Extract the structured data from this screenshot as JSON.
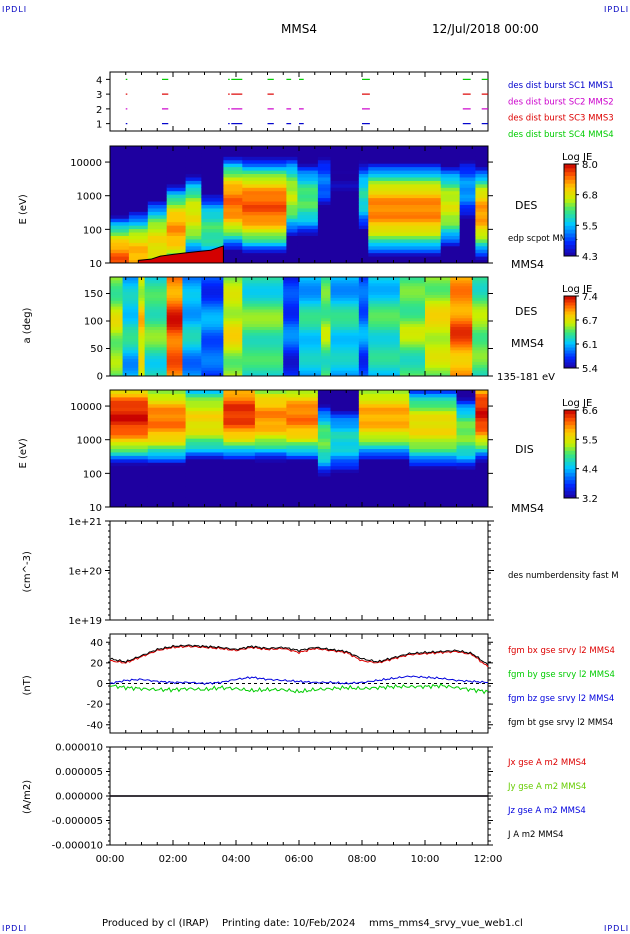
{
  "corners": {
    "tl": "IPDLI",
    "tr": "IPDLI",
    "bl": "IPDLI",
    "br": "IPDLI"
  },
  "header": {
    "spacecraft": "MMS4",
    "date": "12/Jul/2018 00:00"
  },
  "footer": {
    "produced": "Produced by cl (IRAP)",
    "printing": "Printing date: 10/Feb/2024",
    "file": "mms_mms4_srvy_vue_web1.cl"
  },
  "colors": {
    "mms1": "#0000cc",
    "mms2": "#cc00cc",
    "mms3": "#dd0000",
    "mms4": "#00cc00",
    "bx": "#dd0000",
    "by": "#00cc00",
    "bz": "#0000dd",
    "bt": "#000000",
    "jx": "#dd0000",
    "jy": "#66cc00",
    "jz": "#0000dd",
    "j": "#000000"
  },
  "chart_data": [
    {
      "id": "burst",
      "type": "scatter",
      "x_range": [
        0,
        12
      ],
      "ylim": [
        0.5,
        4.5
      ],
      "y_ticks": [
        "1",
        "2",
        "3",
        "4"
      ],
      "series": [
        {
          "name": "des dist burst SC1 MMS1",
          "y": 1,
          "color": "mms1",
          "intervals": [
            [
              0.5,
              0.55
            ],
            [
              1.65,
              1.85
            ],
            [
              3.75,
              3.8
            ],
            [
              3.85,
              4.2
            ],
            [
              5.0,
              5.2
            ],
            [
              5.6,
              5.75
            ],
            [
              6.0,
              6.15
            ],
            [
              8.0,
              8.25
            ],
            [
              11.2,
              11.45
            ],
            [
              11.8,
              12.0
            ]
          ]
        },
        {
          "name": "des dist burst SC2 MMS2",
          "y": 2,
          "color": "mms2",
          "intervals": [
            [
              0.5,
              0.55
            ],
            [
              1.65,
              1.85
            ],
            [
              3.75,
              3.8
            ],
            [
              3.85,
              4.2
            ],
            [
              5.0,
              5.2
            ],
            [
              5.6,
              5.75
            ],
            [
              6.0,
              6.15
            ],
            [
              8.0,
              8.25
            ],
            [
              11.2,
              11.45
            ],
            [
              11.8,
              12.0
            ]
          ]
        },
        {
          "name": "des dist burst SC3 MMS3",
          "y": 3,
          "color": "mms3",
          "intervals": [
            [
              0.5,
              0.55
            ],
            [
              1.65,
              1.85
            ],
            [
              3.75,
              3.8
            ],
            [
              3.85,
              4.2
            ],
            [
              5.0,
              5.2
            ],
            [
              8.0,
              8.25
            ],
            [
              11.2,
              11.45
            ],
            [
              11.8,
              12.0
            ]
          ]
        },
        {
          "name": "des dist burst SC4 MMS4",
          "y": 4,
          "color": "mms4",
          "intervals": [
            [
              0.5,
              0.55
            ],
            [
              1.65,
              1.85
            ],
            [
              3.75,
              3.8
            ],
            [
              3.85,
              4.2
            ],
            [
              5.0,
              5.2
            ],
            [
              5.6,
              5.75
            ],
            [
              6.0,
              6.15
            ],
            [
              8.0,
              8.25
            ],
            [
              11.2,
              11.45
            ],
            [
              11.8,
              12.0
            ]
          ]
        }
      ]
    },
    {
      "id": "des_energy",
      "type": "heatmap",
      "ylabel": "E (eV)",
      "yscale": "log",
      "ylim": [
        10,
        30000
      ],
      "y_ticks": [
        "10",
        "100",
        "1000",
        "10000"
      ],
      "label": "DES",
      "overlay_label": "edp scpot MMS4",
      "bottom_label": "MMS4",
      "colorbar": {
        "title": "Log JE",
        "ticks": [
          "8.0",
          "6.8",
          "5.5",
          "4.3"
        ],
        "range": [
          4.3,
          8.0
        ]
      },
      "columns": [
        {
          "x0": 0,
          "x1": 0.6,
          "peak": 1.0,
          "level": 7.6
        },
        {
          "x0": 0.6,
          "x1": 1.2,
          "peak": 1.2,
          "level": 7.2
        },
        {
          "x0": 1.2,
          "x1": 1.8,
          "peak": 1.6,
          "level": 6.9
        },
        {
          "x0": 1.8,
          "x1": 2.4,
          "peak": 2.0,
          "level": 7.3
        },
        {
          "x0": 2.4,
          "x1": 2.9,
          "peak": 2.4,
          "level": 6.8
        },
        {
          "x0": 2.9,
          "x1": 3.6,
          "peak": 2.0,
          "level": 6.1
        },
        {
          "x0": 3.6,
          "x1": 4.2,
          "peak": 2.8,
          "level": 7.5
        },
        {
          "x0": 4.2,
          "x1": 5.6,
          "peak": 2.7,
          "level": 7.6
        },
        {
          "x0": 5.6,
          "x1": 5.95,
          "peak": 3.0,
          "level": 6.6
        },
        {
          "x0": 5.95,
          "x1": 6.6,
          "peak": 2.9,
          "level": 6.2
        },
        {
          "x0": 6.6,
          "x1": 7.0,
          "peak": 3.4,
          "level": 5.2
        },
        {
          "x0": 7.0,
          "x1": 7.9,
          "peak": 3.4,
          "level": 4.4
        },
        {
          "x0": 7.9,
          "x1": 8.2,
          "peak": 3.0,
          "level": 5.9
        },
        {
          "x0": 8.2,
          "x1": 10.5,
          "peak": 2.6,
          "level": 7.4
        },
        {
          "x0": 10.5,
          "x1": 11.1,
          "peak": 2.7,
          "level": 6.7
        },
        {
          "x0": 11.1,
          "x1": 11.6,
          "peak": 3.2,
          "level": 5.4
        },
        {
          "x0": 11.6,
          "x1": 12.0,
          "peak": 2.5,
          "level": 7.3
        }
      ],
      "scpot": {
        "x": [
          0.9,
          1.3,
          1.6,
          2.0,
          2.4,
          2.8,
          3.2,
          3.5,
          3.6
        ],
        "y": [
          12,
          13,
          16,
          18,
          20,
          22,
          24,
          30,
          32
        ]
      }
    },
    {
      "id": "des_pitch",
      "type": "heatmap",
      "ylabel": "a (deg)",
      "ylim": [
        0,
        180
      ],
      "y_ticks": [
        "0",
        "50",
        "100",
        "150"
      ],
      "label": "DES",
      "sub_label": "MMS4",
      "bottom_label": "135-181 eV",
      "colorbar": {
        "title": "Log JE",
        "ticks": [
          "7.4",
          "6.7",
          "6.1",
          "5.4"
        ],
        "range": [
          5.4,
          7.4
        ]
      },
      "stripes": [
        {
          "x0": 0.0,
          "x1": 0.4,
          "level": 6.7
        },
        {
          "x0": 0.4,
          "x1": 0.9,
          "level": 6.3
        },
        {
          "x0": 0.9,
          "x1": 1.1,
          "level": 6.9
        },
        {
          "x0": 1.1,
          "x1": 1.8,
          "level": 6.5
        },
        {
          "x0": 1.8,
          "x1": 2.3,
          "level": 7.3
        },
        {
          "x0": 2.3,
          "x1": 2.9,
          "level": 6.2
        },
        {
          "x0": 2.9,
          "x1": 3.6,
          "level": 6.0
        },
        {
          "x0": 3.6,
          "x1": 4.2,
          "level": 6.8
        },
        {
          "x0": 4.2,
          "x1": 5.5,
          "level": 6.5
        },
        {
          "x0": 5.5,
          "x1": 6.0,
          "level": 5.9
        },
        {
          "x0": 6.0,
          "x1": 6.7,
          "level": 6.3
        },
        {
          "x0": 6.7,
          "x1": 7.0,
          "level": 6.6
        },
        {
          "x0": 7.0,
          "x1": 7.9,
          "level": 6.3
        },
        {
          "x0": 7.9,
          "x1": 8.2,
          "level": 6.0
        },
        {
          "x0": 8.2,
          "x1": 9.2,
          "level": 6.4
        },
        {
          "x0": 9.2,
          "x1": 10.0,
          "level": 6.6
        },
        {
          "x0": 10.0,
          "x1": 10.8,
          "level": 6.8
        },
        {
          "x0": 10.8,
          "x1": 11.5,
          "level": 7.2
        },
        {
          "x0": 11.5,
          "x1": 12.0,
          "level": 6.6
        }
      ]
    },
    {
      "id": "dis_energy",
      "type": "heatmap",
      "ylabel": "E (eV)",
      "yscale": "log",
      "ylim": [
        10,
        30000
      ],
      "y_ticks": [
        "10",
        "100",
        "1000",
        "10000"
      ],
      "label": "DIS",
      "bottom_label": "MMS4",
      "colorbar": {
        "title": "Log JE",
        "ticks": [
          "6.6",
          "5.5",
          "4.4",
          "3.2"
        ],
        "range": [
          3.2,
          6.6
        ]
      },
      "columns": [
        {
          "x0": 0,
          "x1": 1.2,
          "peak": 3.7,
          "level": 6.5
        },
        {
          "x0": 1.2,
          "x1": 2.4,
          "peak": 3.6,
          "level": 6.1
        },
        {
          "x0": 2.4,
          "x1": 3.6,
          "peak": 3.6,
          "level": 5.6
        },
        {
          "x0": 3.6,
          "x1": 4.6,
          "peak": 3.8,
          "level": 6.4
        },
        {
          "x0": 4.6,
          "x1": 5.6,
          "peak": 3.7,
          "level": 6.0
        },
        {
          "x0": 5.6,
          "x1": 6.6,
          "peak": 3.7,
          "level": 6.1
        },
        {
          "x0": 6.6,
          "x1": 7.0,
          "peak": 3.0,
          "level": 5.0
        },
        {
          "x0": 7.0,
          "x1": 7.9,
          "peak": 3.0,
          "level": 4.6
        },
        {
          "x0": 7.9,
          "x1": 9.5,
          "peak": 3.7,
          "level": 5.9
        },
        {
          "x0": 9.5,
          "x1": 11.0,
          "peak": 3.4,
          "level": 5.6
        },
        {
          "x0": 11.0,
          "x1": 11.6,
          "peak": 3.2,
          "level": 5.1
        },
        {
          "x0": 11.6,
          "x1": 12.0,
          "peak": 3.8,
          "level": 6.5
        }
      ]
    },
    {
      "id": "density",
      "type": "line",
      "ylabel": "(cm^-3)",
      "yscale": "log",
      "ylim": [
        1e+19,
        1e+21
      ],
      "y_ticks": [
        "1e+19",
        "1e+20",
        "1e+21"
      ],
      "series": [
        {
          "name": "des numberdensity fast M",
          "x": [],
          "y": []
        }
      ]
    },
    {
      "id": "bfield",
      "type": "line",
      "ylabel": "(nT)",
      "ylim": [
        -48,
        48
      ],
      "y_ticks": [
        "40",
        "20",
        "0",
        "-20",
        "-40"
      ],
      "series": [
        {
          "name": "fgm bx gse srvy l2 MMS4",
          "color": "bx",
          "x": [
            0,
            0.5,
            1.0,
            1.5,
            2.0,
            2.5,
            3.0,
            3.5,
            4.0,
            4.5,
            5.0,
            5.5,
            6.0,
            6.5,
            7.0,
            7.5,
            8.0,
            8.5,
            9.0,
            9.5,
            10.0,
            10.5,
            11.0,
            11.5,
            12.0
          ],
          "y": [
            22,
            20,
            26,
            32,
            35,
            36,
            35,
            34,
            32,
            35,
            33,
            34,
            30,
            34,
            32,
            30,
            22,
            20,
            24,
            28,
            29,
            30,
            31,
            28,
            16
          ]
        },
        {
          "name": "fgm by gse srvy l2 MMS4",
          "color": "by",
          "x": [
            0,
            0.5,
            1.0,
            1.5,
            2.0,
            2.5,
            3.0,
            3.5,
            4.0,
            4.5,
            5.0,
            5.5,
            6.0,
            6.5,
            7.0,
            7.5,
            8.0,
            8.5,
            9.0,
            9.5,
            10.0,
            10.5,
            11.0,
            11.5,
            12.0
          ],
          "y": [
            -2,
            -4,
            -5,
            -6,
            -6,
            -5,
            -6,
            -4,
            -5,
            -7,
            -6,
            -6,
            -8,
            -6,
            -5,
            -4,
            -5,
            -4,
            -3,
            -3,
            -3,
            -2,
            -4,
            -6,
            -8
          ]
        },
        {
          "name": "fgm bz gse srvy l2 MMS4",
          "color": "bz",
          "x": [
            0,
            0.5,
            1.0,
            1.5,
            2.0,
            2.5,
            3.0,
            3.5,
            4.0,
            4.5,
            5.0,
            5.5,
            6.0,
            6.5,
            7.0,
            7.5,
            8.0,
            8.5,
            9.0,
            9.5,
            10.0,
            10.5,
            11.0,
            11.5,
            12.0
          ],
          "y": [
            0,
            3,
            4,
            2,
            1,
            1,
            0,
            1,
            4,
            6,
            4,
            3,
            2,
            1,
            1,
            0,
            1,
            3,
            5,
            7,
            6,
            5,
            3,
            2,
            1
          ]
        },
        {
          "name": "fgm bt gse srvy l2 MMS4",
          "color": "bt",
          "x": [
            0,
            0.5,
            1.0,
            1.5,
            2.0,
            2.5,
            3.0,
            3.5,
            4.0,
            4.5,
            5.0,
            5.5,
            6.0,
            6.5,
            7.0,
            7.5,
            8.0,
            8.5,
            9.0,
            9.5,
            10.0,
            10.5,
            11.0,
            11.5,
            12.0
          ],
          "y": [
            24,
            21,
            27,
            33,
            36,
            37,
            36,
            35,
            33,
            36,
            34,
            35,
            32,
            35,
            33,
            31,
            24,
            21,
            25,
            29,
            30,
            31,
            32,
            29,
            18
          ]
        }
      ]
    },
    {
      "id": "current",
      "type": "line",
      "ylabel": "(A/m2)",
      "ylim": [
        -1e-05,
        1e-05
      ],
      "y_ticks": [
        "0.000010",
        "0.000005",
        "0.000000",
        "-0.000005",
        "-0.000010"
      ],
      "x_ticks": [
        "00:00",
        "02:00",
        "04:00",
        "06:00",
        "08:00",
        "10:00",
        "12:00"
      ],
      "series": [
        {
          "name": "Jx gse A m2 MMS4",
          "color": "jx",
          "x": [
            0,
            12
          ],
          "y": [
            0,
            0
          ]
        },
        {
          "name": "Jy gse A m2 MMS4",
          "color": "jy",
          "x": [
            0,
            12
          ],
          "y": [
            0,
            0
          ]
        },
        {
          "name": "Jz gse A m2 MMS4",
          "color": "jz",
          "x": [
            0,
            12
          ],
          "y": [
            0,
            0
          ]
        },
        {
          "name": "J A m2 MMS4",
          "color": "j",
          "x": [
            0,
            12
          ],
          "y": [
            0,
            0
          ]
        }
      ]
    }
  ]
}
